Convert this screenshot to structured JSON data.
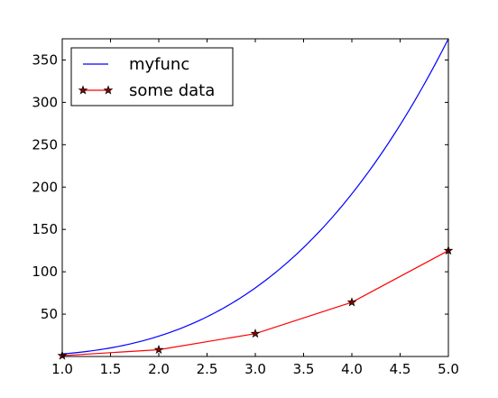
{
  "chart_data": {
    "type": "line",
    "title": "",
    "xlabel": "",
    "ylabel": "",
    "xlim": [
      1.0,
      5.0
    ],
    "ylim": [
      0,
      375
    ],
    "grid": false,
    "legend_position": "top-left",
    "x_ticks": [
      "1.0",
      "1.5",
      "2.0",
      "2.5",
      "3.0",
      "3.5",
      "4.0",
      "4.5",
      "5.0"
    ],
    "y_ticks": [
      "50",
      "100",
      "150",
      "200",
      "250",
      "300",
      "350"
    ],
    "series": [
      {
        "name": "myfunc",
        "style": "line",
        "color": "#0000ff",
        "function": "3*x^3",
        "x": [
          1.0,
          1.5,
          2.0,
          2.5,
          3.0,
          3.5,
          4.0,
          4.5,
          5.0
        ],
        "values": [
          3,
          10.1,
          24,
          46.9,
          81,
          128.6,
          192,
          273.4,
          375
        ]
      },
      {
        "name": "some data",
        "style": "line-marker",
        "marker": "star",
        "color": "#ff0000",
        "marker_fill": "#8b0000",
        "x": [
          1,
          2,
          3,
          4,
          5
        ],
        "values": [
          1,
          8,
          27,
          64,
          125
        ]
      }
    ]
  }
}
